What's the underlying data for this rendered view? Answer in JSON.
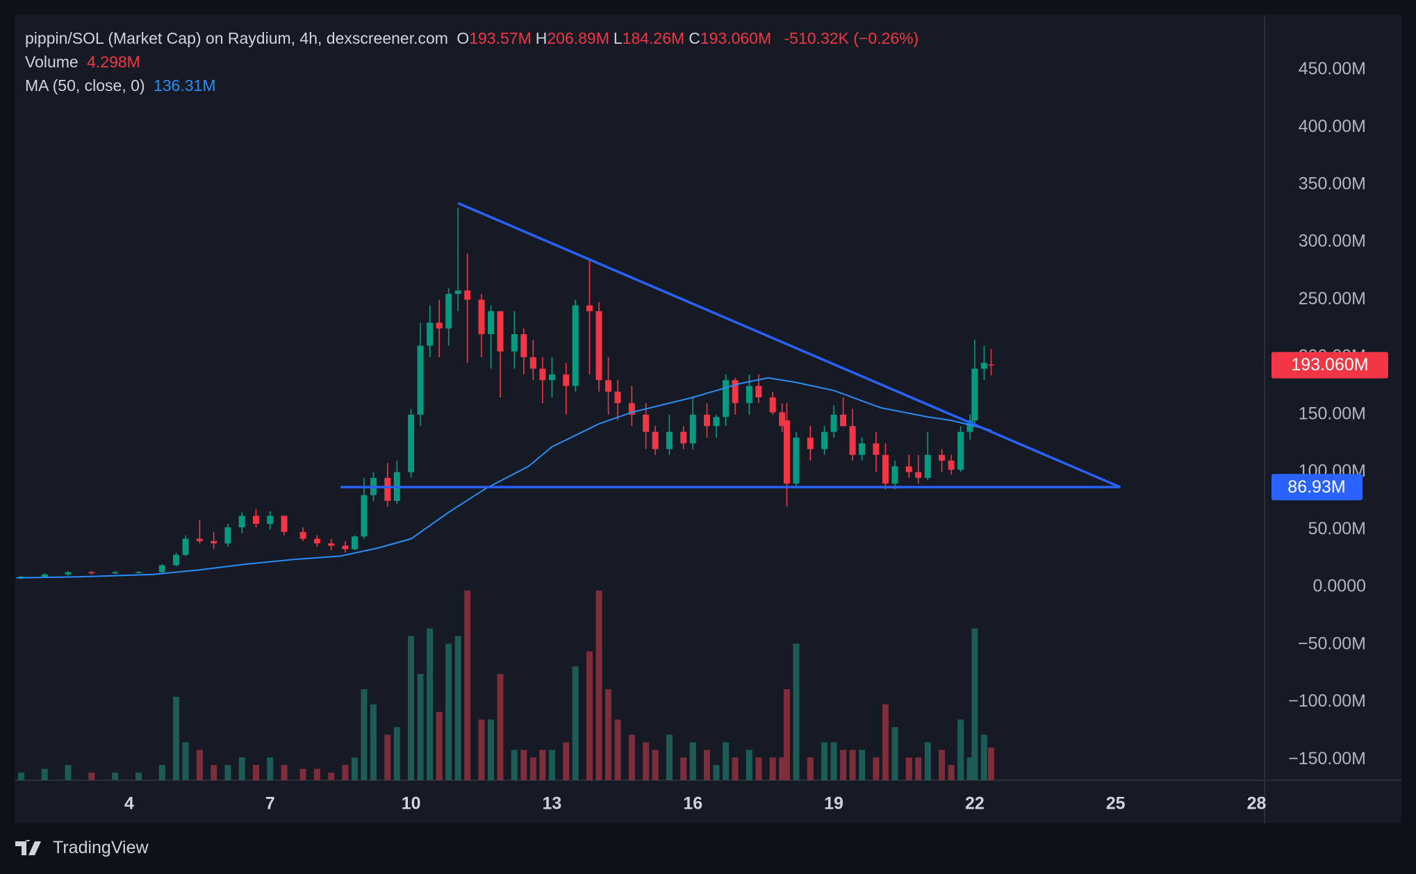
{
  "chart_data": {
    "type": "candlestick",
    "title": "pippin/SOL (Market Cap) on Raydium, 4h, dexscreener.com",
    "ohlc_legend": [
      {
        "key": "O",
        "value": "193.57M"
      },
      {
        "key": "H",
        "value": "206.89M"
      },
      {
        "key": "L",
        "value": "184.26M"
      },
      {
        "key": "C",
        "value": "193.060M"
      }
    ],
    "change_label": "-510.32K (−0.26%)",
    "volume_label": "Volume",
    "volume_value_label": "4.298M",
    "ma_label": "MA (50, close, 0)",
    "ma_value_label": "136.31M",
    "brand": "TradingView",
    "up_color": "#089981",
    "down_color": "#f23645",
    "volume_up_color": "#1d5c55",
    "volume_down_color": "#7d2e3a",
    "ma_color": "#2a8df7",
    "grid": true,
    "xlim": [
      1.56,
      28.17
    ],
    "xticks": [
      4,
      7,
      10,
      13,
      16,
      19,
      22,
      25,
      28
    ],
    "ylim": [
      -168,
      498
    ],
    "yticks": [
      {
        "value": -150,
        "label": "−150.00M"
      },
      {
        "value": -100,
        "label": "−100.00M"
      },
      {
        "value": -50,
        "label": "−50.00M"
      },
      {
        "value": 0,
        "label": "0.0000"
      },
      {
        "value": 50,
        "label": "50.00M"
      },
      {
        "value": 100,
        "label": "100.00M"
      },
      {
        "value": 150,
        "label": "150.00M"
      },
      {
        "value": 200,
        "label": "200.00M"
      },
      {
        "value": 250,
        "label": "250.00M"
      },
      {
        "value": 300,
        "label": "300.00M"
      },
      {
        "value": 350,
        "label": "350.00M"
      },
      {
        "value": 400,
        "label": "400.00M"
      },
      {
        "value": 450,
        "label": "450.00M"
      }
    ],
    "volume_ylim": [
      0,
      25
    ],
    "x": [
      1.7,
      2.2,
      2.7,
      3.2,
      3.7,
      4.2,
      4.7,
      5.0,
      5.2,
      5.5,
      5.8,
      6.1,
      6.4,
      6.7,
      7.0,
      7.3,
      7.7,
      8.0,
      8.3,
      8.6,
      8.8,
      9.0,
      9.2,
      9.5,
      9.7,
      10.0,
      10.2,
      10.4,
      10.6,
      10.8,
      11.0,
      11.2,
      11.5,
      11.7,
      11.9,
      12.2,
      12.4,
      12.6,
      12.8,
      13.0,
      13.3,
      13.5,
      13.8,
      14.0,
      14.2,
      14.4,
      14.7,
      15.0,
      15.2,
      15.5,
      15.8,
      16.0,
      16.3,
      16.5,
      16.7,
      16.9,
      17.2,
      17.4,
      17.7,
      17.9,
      18.0,
      18.2,
      18.5,
      18.8,
      19.0,
      19.2,
      19.4,
      19.6,
      19.9,
      20.1,
      20.3,
      20.6,
      20.8,
      21.0,
      21.3,
      21.5,
      21.7,
      21.9,
      22.0,
      22.2,
      22.35
    ],
    "open": [
      8,
      9,
      11,
      13,
      12,
      13,
      13,
      19,
      28,
      42,
      40,
      38,
      52,
      62,
      55,
      62,
      48,
      42,
      38,
      36,
      33,
      44,
      80,
      95,
      75,
      100,
      150,
      210,
      230,
      225,
      255,
      258,
      250,
      220,
      240,
      205,
      220,
      200,
      190,
      180,
      185,
      175,
      245,
      240,
      180,
      170,
      160,
      150,
      135,
      120,
      135,
      125,
      150,
      140,
      148,
      180,
      160,
      175,
      165,
      152,
      145,
      90,
      130,
      120,
      135,
      150,
      140,
      115,
      125,
      115,
      90,
      105,
      100,
      95,
      115,
      110,
      102,
      135,
      145,
      190,
      193.57
    ],
    "high": [
      10,
      12,
      14,
      14,
      14,
      14,
      20,
      30,
      45,
      58,
      48,
      55,
      65,
      68,
      66,
      62,
      52,
      45,
      42,
      40,
      45,
      95,
      100,
      108,
      110,
      155,
      230,
      245,
      250,
      260,
      330,
      290,
      255,
      245,
      240,
      240,
      225,
      215,
      200,
      200,
      195,
      250,
      285,
      248,
      200,
      180,
      175,
      160,
      140,
      150,
      140,
      165,
      160,
      150,
      185,
      182,
      185,
      185,
      170,
      160,
      160,
      135,
      140,
      140,
      158,
      165,
      155,
      130,
      135,
      125,
      110,
      115,
      115,
      135,
      120,
      115,
      140,
      150,
      215,
      210,
      206.89
    ],
    "low": [
      7,
      8,
      10,
      11,
      11,
      12,
      12,
      18,
      27,
      38,
      33,
      35,
      47,
      52,
      50,
      45,
      40,
      35,
      32,
      30,
      32,
      42,
      75,
      70,
      72,
      95,
      140,
      200,
      200,
      210,
      240,
      195,
      200,
      190,
      165,
      190,
      185,
      180,
      160,
      165,
      150,
      170,
      185,
      170,
      150,
      145,
      140,
      120,
      115,
      115,
      120,
      120,
      130,
      130,
      140,
      150,
      150,
      160,
      150,
      135,
      70,
      88,
      110,
      115,
      130,
      140,
      110,
      110,
      100,
      85,
      85,
      95,
      90,
      93,
      100,
      98,
      100,
      128,
      140,
      180,
      184.26
    ],
    "close": [
      9,
      11,
      13,
      12,
      13,
      13,
      19,
      28,
      42,
      40,
      38,
      52,
      62,
      55,
      62,
      48,
      42,
      38,
      36,
      33,
      44,
      80,
      95,
      75,
      100,
      150,
      210,
      230,
      225,
      255,
      258,
      250,
      220,
      240,
      205,
      220,
      200,
      190,
      180,
      185,
      175,
      245,
      240,
      180,
      170,
      160,
      150,
      135,
      120,
      135,
      125,
      150,
      140,
      148,
      180,
      160,
      175,
      165,
      152,
      140,
      90,
      130,
      120,
      135,
      150,
      140,
      115,
      125,
      115,
      90,
      105,
      100,
      95,
      115,
      110,
      102,
      135,
      145,
      190,
      195,
      193.06
    ],
    "close_label": "193.060M",
    "volume": [
      1,
      1.5,
      2,
      1,
      1,
      1,
      2,
      11,
      5,
      4,
      2,
      2,
      3,
      2,
      3,
      2,
      1.5,
      1.5,
      1,
      2,
      3,
      12,
      10,
      6,
      7,
      19,
      14,
      20,
      9,
      18,
      19,
      25,
      8,
      8,
      14,
      4,
      4,
      3,
      4,
      4,
      5,
      15,
      17,
      25,
      12,
      8,
      6,
      5,
      4,
      6,
      3,
      5,
      4,
      2,
      5,
      3,
      4,
      3,
      3,
      3,
      12,
      18,
      3,
      5,
      5,
      4,
      4,
      4,
      3,
      10,
      7,
      3,
      3,
      5,
      4,
      2,
      8,
      3,
      20,
      6,
      4.298
    ],
    "ma": {
      "name": "MA (50, close, 0)",
      "x": [
        1.6,
        3,
        4.5,
        5.5,
        6.5,
        7.5,
        8.5,
        9.3,
        10,
        10.8,
        11.6,
        12.5,
        13,
        14,
        14.7,
        16,
        17,
        17.6,
        18.2,
        19,
        20,
        21,
        21.5,
        22,
        22.35
      ],
      "values": [
        8,
        9,
        11,
        15,
        20,
        24,
        27,
        34,
        42,
        65,
        86,
        105,
        122,
        142,
        152,
        165,
        177,
        182,
        178,
        171,
        156,
        148,
        145,
        140,
        136.31
      ]
    },
    "support": {
      "value": 86.93,
      "label": "86.93M",
      "x": [
        8.5,
        25.1
      ]
    },
    "trendline": {
      "x": [
        11.0,
        25.1
      ],
      "values": [
        334,
        86.93
      ]
    }
  }
}
